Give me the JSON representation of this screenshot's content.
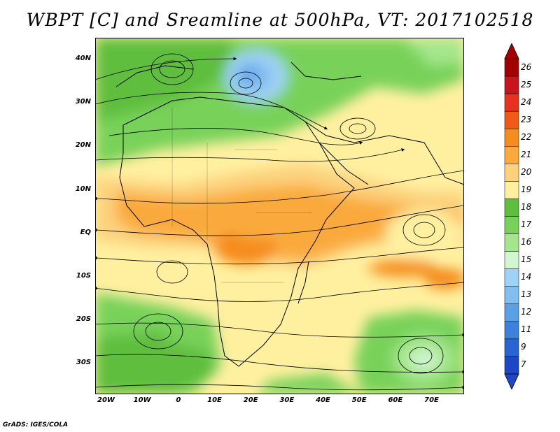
{
  "title": "WBPT [C] and Sreamline at 500hPa, VT: 2017102518",
  "map": {
    "lon_range": [
      -23,
      79
    ],
    "lat_range": [
      -37,
      45
    ],
    "lat_ticks": [
      {
        "value": 40,
        "label": "40N"
      },
      {
        "value": 30,
        "label": "30N"
      },
      {
        "value": 20,
        "label": "20N"
      },
      {
        "value": 10,
        "label": "10N"
      },
      {
        "value": 0,
        "label": "EQ"
      },
      {
        "value": -10,
        "label": "10S"
      },
      {
        "value": -20,
        "label": "20S"
      },
      {
        "value": -30,
        "label": "30S"
      }
    ],
    "lon_ticks": [
      {
        "value": -20,
        "label": "20W"
      },
      {
        "value": -10,
        "label": "10W"
      },
      {
        "value": 0,
        "label": "0"
      },
      {
        "value": 10,
        "label": "10E"
      },
      {
        "value": 20,
        "label": "20E"
      },
      {
        "value": 30,
        "label": "30E"
      },
      {
        "value": 40,
        "label": "40E"
      },
      {
        "value": 50,
        "label": "50E"
      },
      {
        "value": 60,
        "label": "60E"
      },
      {
        "value": 70,
        "label": "70E"
      }
    ]
  },
  "colorbar": {
    "labels": [
      "26",
      "25",
      "24",
      "23",
      "22",
      "21",
      "20",
      "19",
      "18",
      "17",
      "16",
      "15",
      "14",
      "13",
      "12",
      "11",
      "9",
      "7"
    ],
    "colors": [
      "#a50000",
      "#c8141e",
      "#e6321e",
      "#f05a14",
      "#f58c1e",
      "#faaa3c",
      "#fcd27d",
      "#fff0a0",
      "#5fbe3c",
      "#78d25a",
      "#a5e68c",
      "#d2f5d2",
      "#a0d2f5",
      "#82bef0",
      "#5aa0e6",
      "#3c82dc",
      "#2864d2",
      "#1e46c8"
    ]
  },
  "footer": "GrADS: IGES/COLA"
}
